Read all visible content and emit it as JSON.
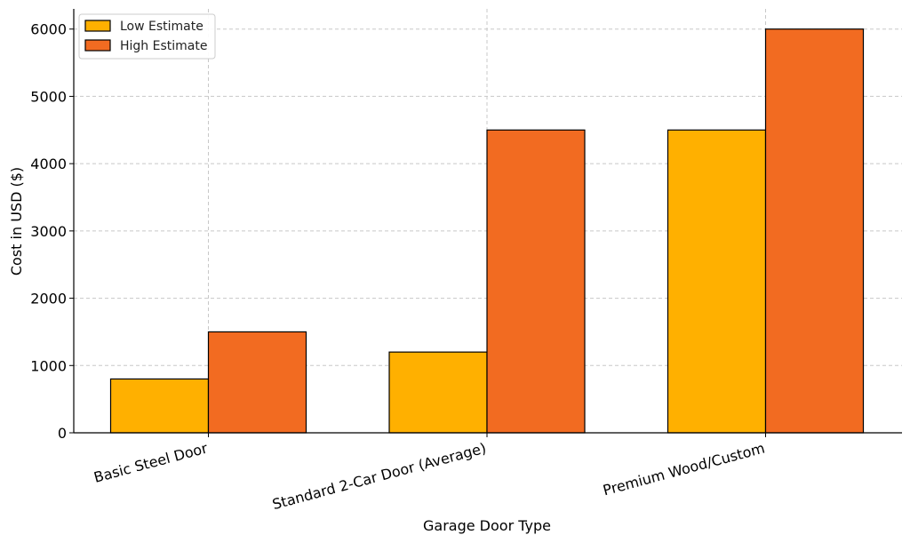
{
  "chart_data": {
    "type": "bar",
    "title": "",
    "xlabel": "Garage Door Type",
    "ylabel": "Cost in USD ($)",
    "categories": [
      "Basic Steel Door",
      "Standard 2-Car Door (Average)",
      "Premium Wood/Custom"
    ],
    "series": [
      {
        "name": "Low Estimate",
        "color": "#FFB000",
        "values": [
          800,
          1200,
          4500
        ]
      },
      {
        "name": "High Estimate",
        "color": "#F26B21",
        "values": [
          1500,
          4500,
          6000
        ]
      }
    ],
    "ylim": [
      0,
      6300
    ],
    "yticks": [
      0,
      1000,
      2000,
      3000,
      4000,
      5000,
      6000
    ],
    "grid": true,
    "legend": "top-left"
  }
}
